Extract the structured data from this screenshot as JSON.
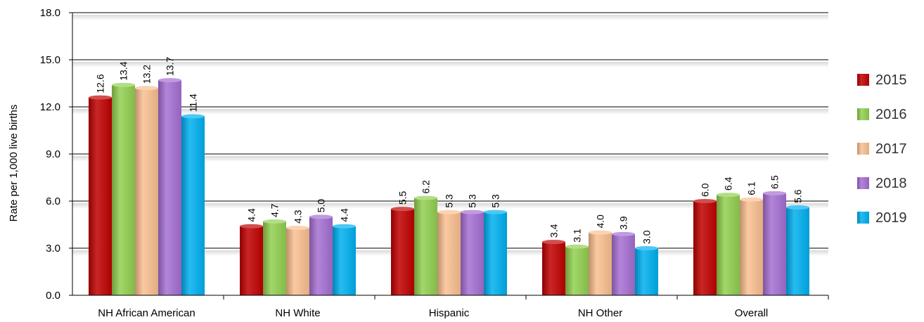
{
  "chart_data": {
    "type": "bar",
    "categories": [
      "NH African American",
      "NH White",
      "Hispanic",
      "NH Other",
      "Overall"
    ],
    "series": [
      {
        "name": "2015",
        "color": "#c00000",
        "values": [
          12.6,
          4.4,
          5.5,
          3.4,
          6.0
        ]
      },
      {
        "name": "2016",
        "color": "#92d050",
        "values": [
          13.4,
          4.7,
          6.2,
          3.1,
          6.4
        ]
      },
      {
        "name": "2017",
        "color": "#fac090",
        "values": [
          13.2,
          4.3,
          5.3,
          4.0,
          6.1
        ]
      },
      {
        "name": "2018",
        "color": "#a66fd3",
        "values": [
          13.7,
          5.0,
          5.3,
          3.9,
          6.5
        ]
      },
      {
        "name": "2019",
        "color": "#00b0f0",
        "values": [
          11.4,
          4.4,
          5.3,
          3.0,
          5.6
        ]
      }
    ],
    "data_labels": [
      [
        "12.6",
        "4.4",
        "5.5",
        "3.4",
        "6.0"
      ],
      [
        "13.4",
        "4.7",
        "6.2",
        "3.1",
        "6.4"
      ],
      [
        "13.2",
        "4.3",
        "5.3",
        "4.0",
        "6.1"
      ],
      [
        "13.7",
        "5.0",
        "5.3",
        "3.9",
        "6.5"
      ],
      [
        "11.4",
        "4.4",
        "5.3",
        "3.0",
        "5.6"
      ]
    ],
    "title": "",
    "xlabel": "",
    "ylabel": "Rate per 1,000 live births",
    "ylim": [
      0,
      18
    ],
    "yticks": [
      "0.0",
      "3.0",
      "6.0",
      "9.0",
      "12.0",
      "15.0",
      "18.0"
    ],
    "grid": true,
    "legend_position": "right"
  }
}
